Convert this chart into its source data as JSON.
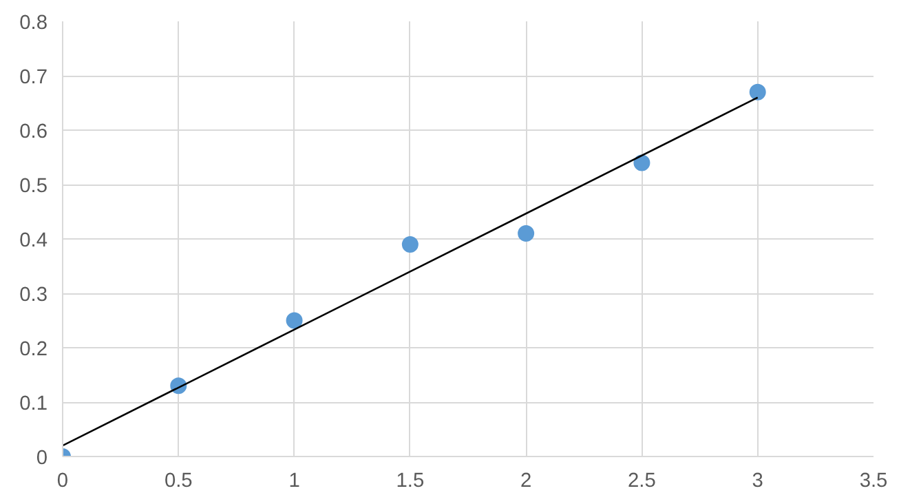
{
  "chart_data": {
    "type": "scatter",
    "x": [
      0,
      0.5,
      1,
      1.5,
      2,
      2.5,
      3
    ],
    "series": [
      {
        "color": "#5b9bd5",
        "marker": "circle",
        "values": [
          0,
          0.13,
          0.25,
          0.39,
          0.41,
          0.54,
          0.67
        ]
      },
      {
        "type": "line",
        "color": "#000000",
        "x": [
          0,
          3
        ],
        "values": [
          0.02,
          0.66
        ]
      }
    ],
    "xlim": [
      0,
      3.5
    ],
    "xticks": [
      0,
      0.5,
      1,
      1.5,
      2,
      2.5,
      3,
      3.5
    ],
    "ylim": [
      0,
      0.8
    ],
    "yticks": [
      0,
      0.1,
      0.2,
      0.3,
      0.4,
      0.5,
      0.6,
      0.7,
      0.8
    ],
    "grid": true
  }
}
